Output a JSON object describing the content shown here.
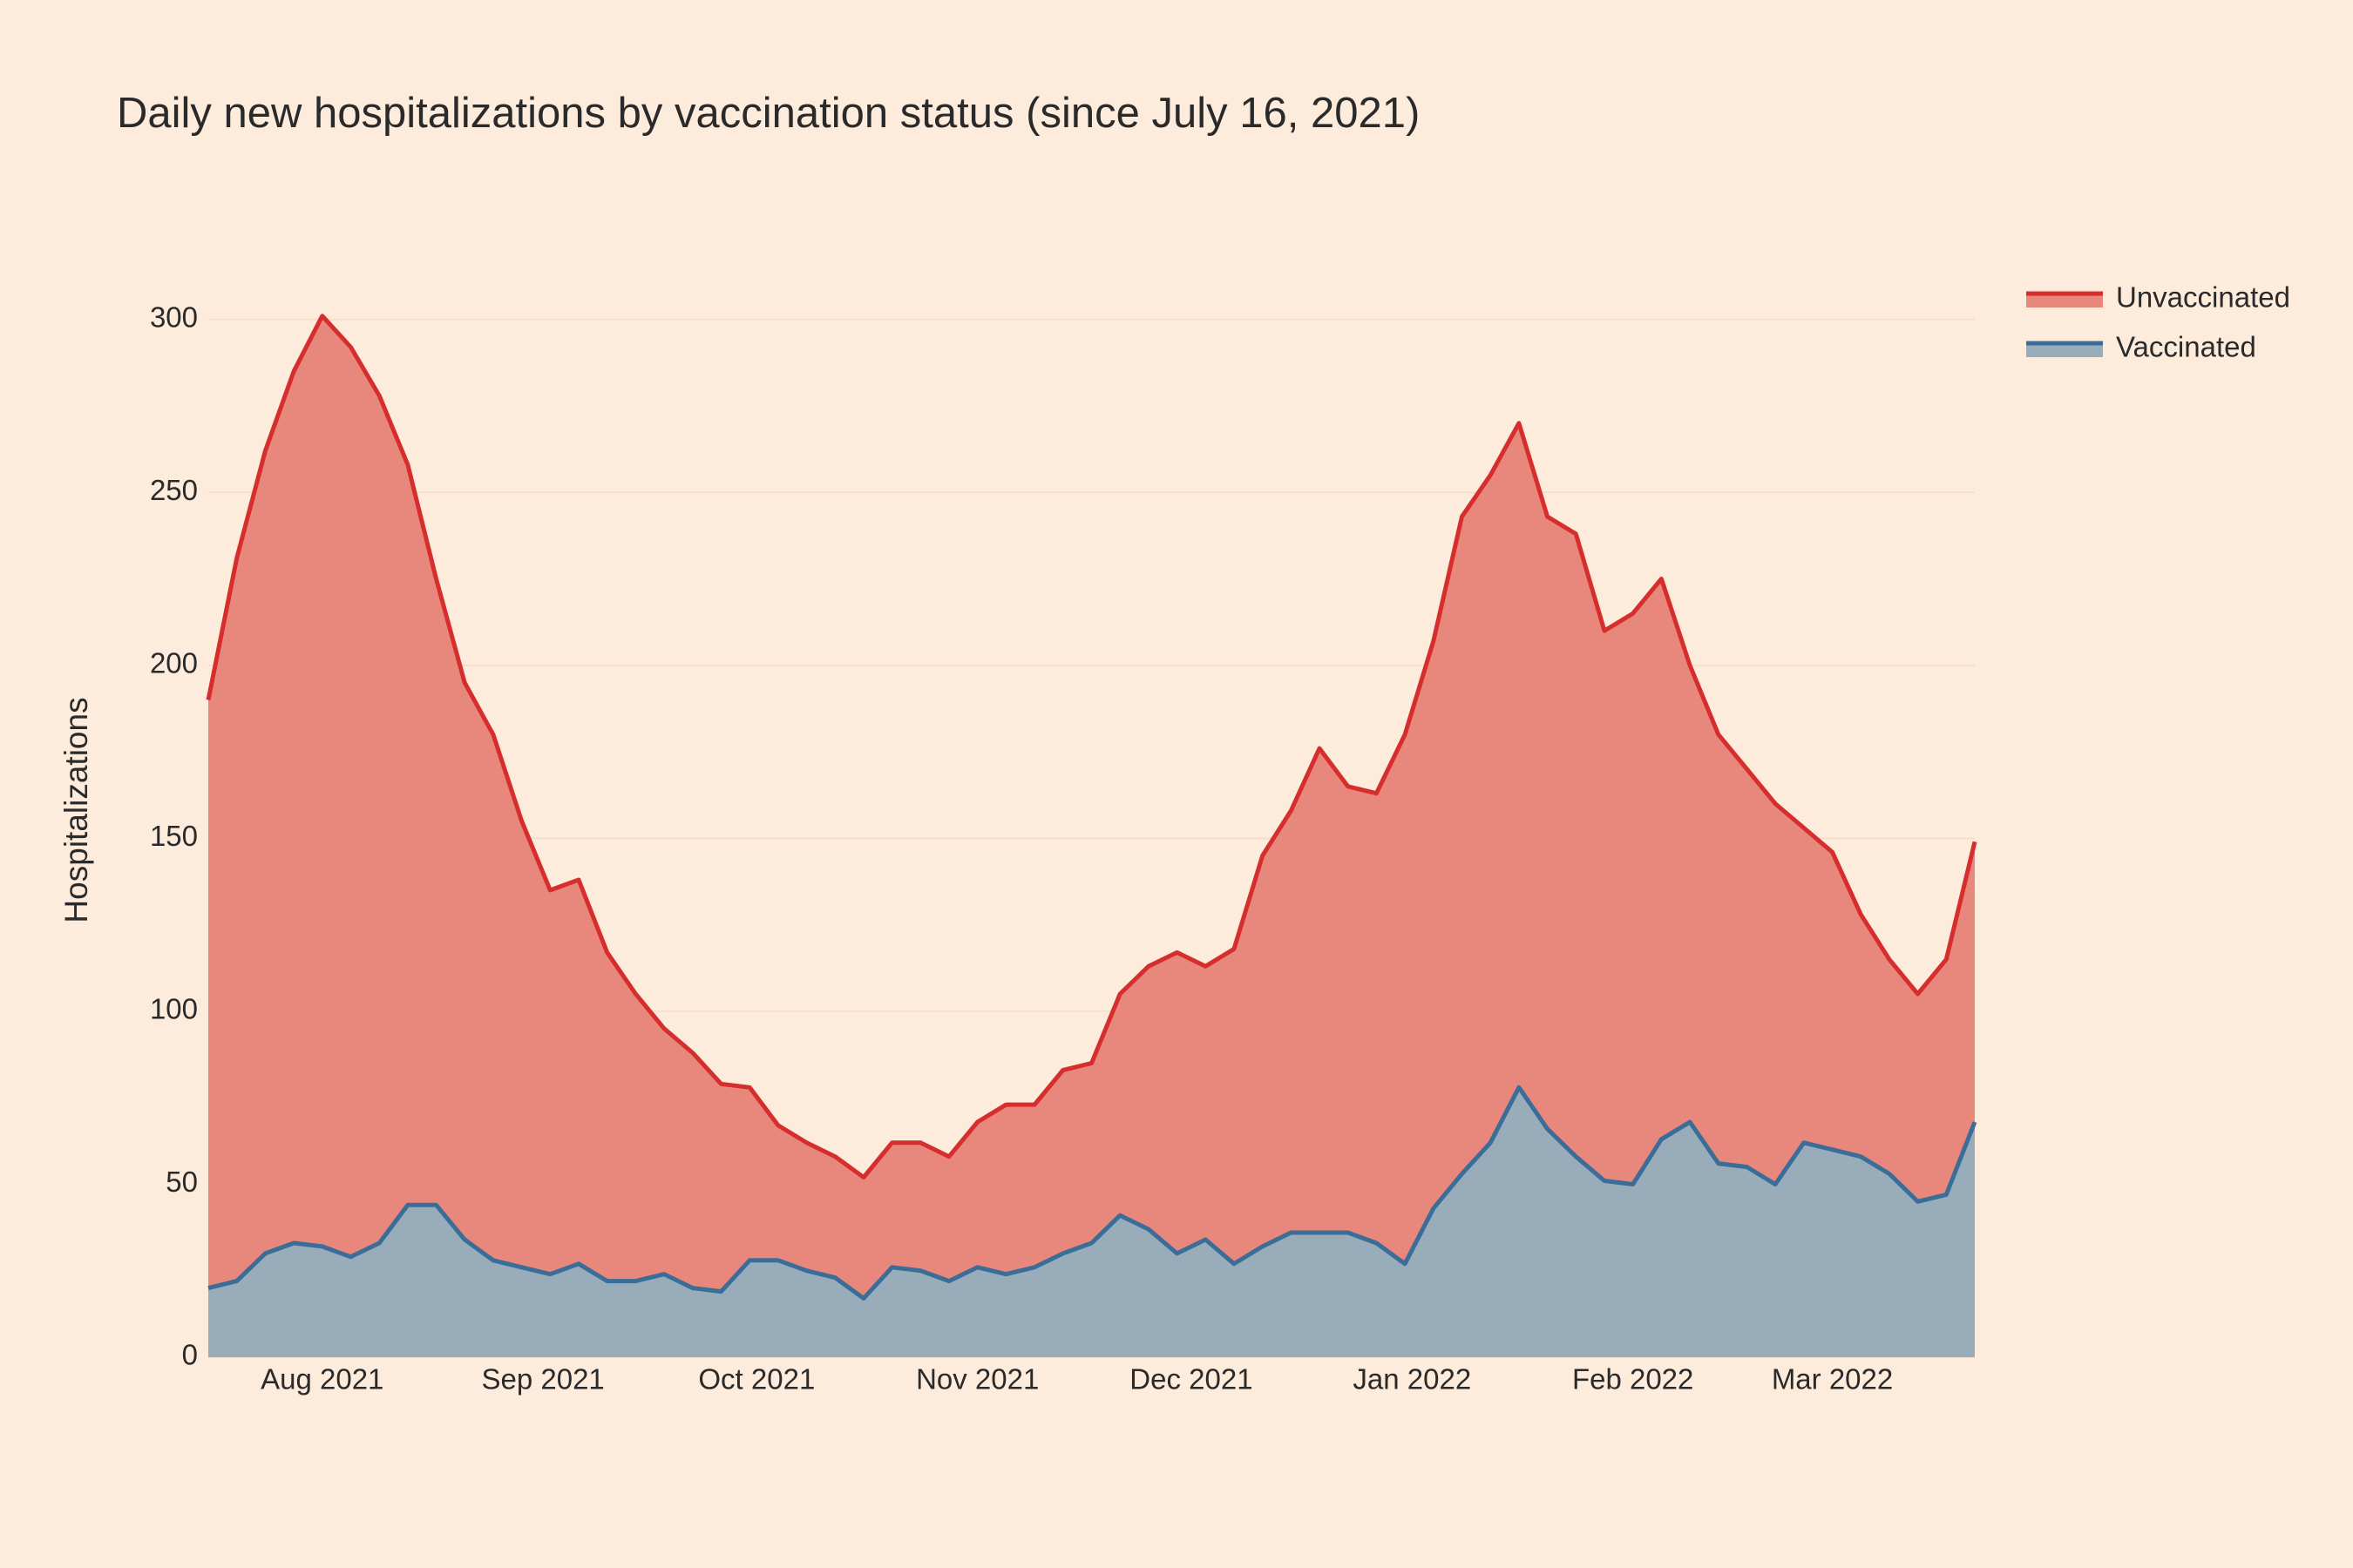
{
  "chart_data": {
    "type": "area",
    "title": "Daily new hospitalizations by vaccination status (since July 16, 2021)",
    "y_label": "Hospitalizations",
    "x": [
      "2021-07-16",
      "2021-07-20",
      "2021-07-24",
      "2021-07-28",
      "2021-08-01",
      "2021-08-05",
      "2021-08-09",
      "2021-08-13",
      "2021-08-17",
      "2021-08-21",
      "2021-08-25",
      "2021-08-29",
      "2021-09-02",
      "2021-09-06",
      "2021-09-10",
      "2021-09-14",
      "2021-09-18",
      "2021-09-22",
      "2021-09-26",
      "2021-09-30",
      "2021-10-04",
      "2021-10-08",
      "2021-10-12",
      "2021-10-16",
      "2021-10-20",
      "2021-10-24",
      "2021-10-28",
      "2021-11-01",
      "2021-11-05",
      "2021-11-09",
      "2021-11-13",
      "2021-11-17",
      "2021-11-21",
      "2021-11-25",
      "2021-11-29",
      "2021-12-03",
      "2021-12-07",
      "2021-12-11",
      "2021-12-15",
      "2021-12-19",
      "2021-12-23",
      "2021-12-27",
      "2021-12-31",
      "2022-01-04",
      "2022-01-08",
      "2022-01-12",
      "2022-01-16",
      "2022-01-20",
      "2022-01-24",
      "2022-01-28",
      "2022-02-01",
      "2022-02-05",
      "2022-02-09",
      "2022-02-13",
      "2022-02-17",
      "2022-02-21",
      "2022-02-25",
      "2022-03-01",
      "2022-03-05",
      "2022-03-09",
      "2022-03-13",
      "2022-03-17",
      "2022-03-21"
    ],
    "series": [
      {
        "name": "Unvaccinated",
        "color": "#d62d2d",
        "fill": "#e8887d",
        "values": [
          190,
          231,
          262,
          285,
          301,
          292,
          278,
          258,
          225,
          195,
          180,
          155,
          135,
          138,
          117,
          105,
          95,
          88,
          79,
          78,
          67,
          62,
          58,
          52,
          62,
          62,
          58,
          68,
          73,
          73,
          83,
          85,
          105,
          113,
          117,
          113,
          118,
          145,
          158,
          176,
          165,
          163,
          180,
          207,
          243,
          255,
          270,
          243,
          238,
          210,
          215,
          225,
          200,
          180,
          170,
          160,
          153,
          146,
          128,
          115,
          105,
          115,
          149
        ]
      },
      {
        "name": "Vaccinated",
        "color": "#3a6d98",
        "fill": "#98adb9",
        "values": [
          20,
          22,
          30,
          33,
          32,
          29,
          33,
          44,
          44,
          34,
          28,
          26,
          24,
          27,
          22,
          22,
          24,
          20,
          19,
          28,
          28,
          25,
          23,
          17,
          26,
          25,
          22,
          26,
          24,
          26,
          30,
          33,
          41,
          37,
          30,
          34,
          27,
          32,
          36,
          36,
          36,
          33,
          27,
          43,
          53,
          62,
          78,
          66,
          58,
          51,
          50,
          63,
          68,
          56,
          55,
          50,
          62,
          60,
          58,
          53,
          45,
          47,
          68
        ]
      }
    ],
    "xlim": [
      "2021-07-16",
      "2022-03-21"
    ],
    "xticks": [
      {
        "value": "2021-08-01",
        "label": "Aug 2021"
      },
      {
        "value": "2021-09-01",
        "label": "Sep 2021"
      },
      {
        "value": "2021-10-01",
        "label": "Oct 2021"
      },
      {
        "value": "2021-11-01",
        "label": "Nov 2021"
      },
      {
        "value": "2021-12-01",
        "label": "Dec 2021"
      },
      {
        "value": "2022-01-01",
        "label": "Jan 2022"
      },
      {
        "value": "2022-02-01",
        "label": "Feb 2022"
      },
      {
        "value": "2022-03-01",
        "label": "Mar 2022"
      }
    ],
    "ylim": [
      0,
      310
    ],
    "yticks": [
      0,
      50,
      100,
      150,
      200,
      250,
      300
    ],
    "grid": true,
    "legend": "top-right"
  }
}
